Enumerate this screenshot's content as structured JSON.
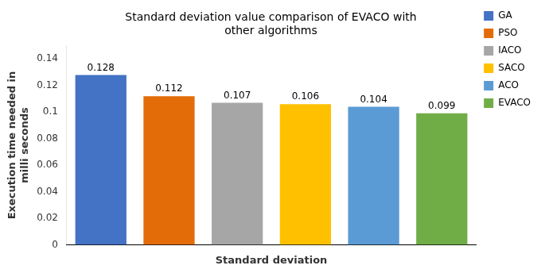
{
  "chart_data": {
    "type": "bar",
    "title": "Standard deviation value comparison of EVACO with\nother algorithms",
    "xlabel": "Standard deviation",
    "ylabel": "Execution time needed in\nmilli seconds",
    "categories": [
      "GA",
      "PSO",
      "IACO",
      "SACO",
      "ACO",
      "EVACO"
    ],
    "values": [
      0.128,
      0.112,
      0.107,
      0.106,
      0.104,
      0.099
    ],
    "colors": [
      "#4472C4",
      "#E36C09",
      "#A6A6A6",
      "#FFC000",
      "#5B9BD5",
      "#70AD47"
    ],
    "ylim": [
      0,
      0.15
    ],
    "yticks": [
      0,
      0.02,
      0.04,
      0.06,
      0.08,
      0.1,
      0.12,
      0.14
    ],
    "grid": false,
    "legend": "right",
    "data_labels": true,
    "tick_labels": "y"
  }
}
